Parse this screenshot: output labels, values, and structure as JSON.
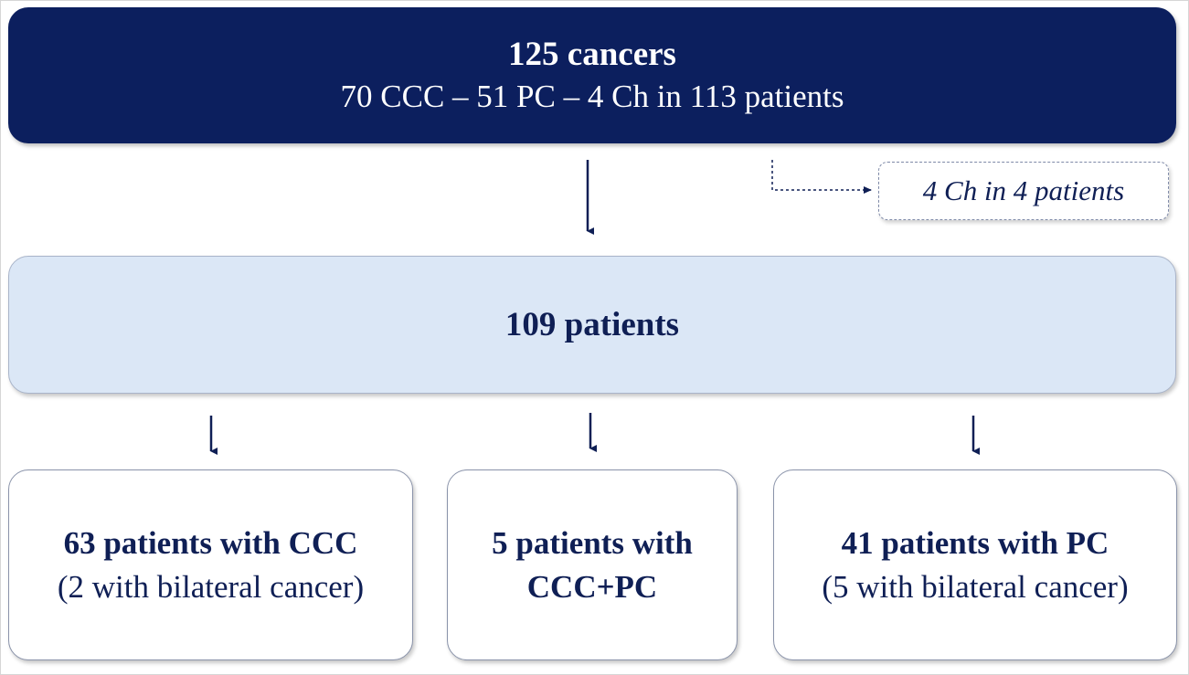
{
  "top": {
    "title": "125 cancers",
    "subtitle": "70 CCC – 51 PC – 4 Ch in 113 patients"
  },
  "exclusion": {
    "label": "4 Ch in 4 patients"
  },
  "middle": {
    "title": "109 patients"
  },
  "leaves": [
    {
      "line1": "63 patients with CCC",
      "line2": "(2 with bilateral cancer)"
    },
    {
      "line1": "5 patients with",
      "line2": "CCC+PC"
    },
    {
      "line1": "41 patients with PC",
      "line2": "(5 with bilateral cancer)"
    }
  ],
  "colors": {
    "dark_navy": "#0c1f5e",
    "light_blue": "#dbe7f6",
    "text_navy": "#0f1f55"
  }
}
